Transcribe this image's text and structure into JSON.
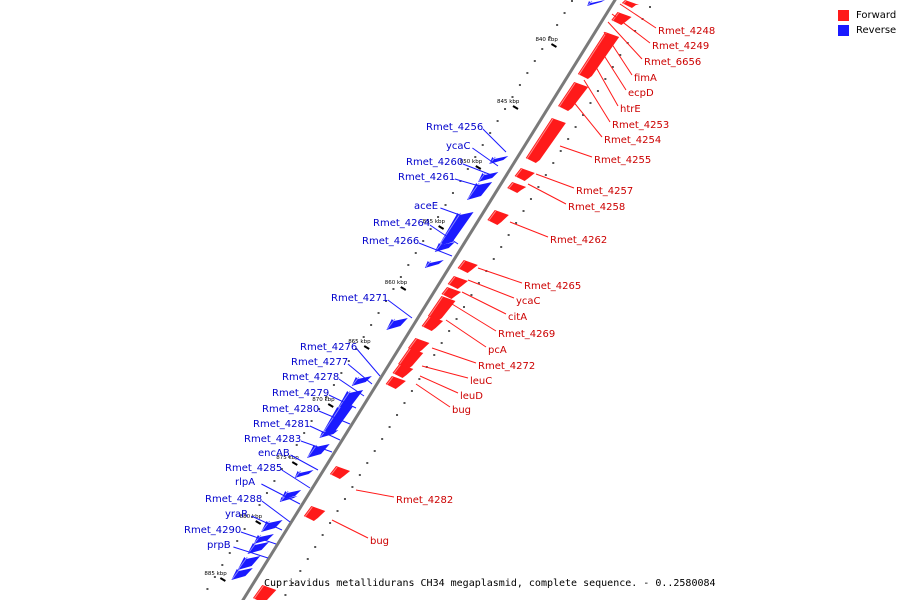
{
  "colors": {
    "forward": "#ff1a1a",
    "reverse": "#1a1aff",
    "backbone": "#7a7a7a"
  },
  "legend": [
    {
      "label": "Forward",
      "color": "#ff1a1a"
    },
    {
      "label": "Reverse",
      "color": "#1a1aff"
    }
  ],
  "caption": "Cupriavidus metallidurans CH34 megaplasmid, complete sequence. - 0..2580084",
  "ticks": [
    "840 kbp",
    "845 kbp",
    "850 kbp",
    "855 kbp",
    "860 kbp",
    "865 kbp",
    "870 kbp",
    "875 kbp",
    "880 kbp",
    "885 kbp"
  ],
  "forward_labels": [
    "Rmet_4248",
    "Rmet_4249",
    "Rmet_6656",
    "fimA",
    "ecpD",
    "htrE",
    "Rmet_4253",
    "Rmet_4254",
    "Rmet_4255",
    "Rmet_4257",
    "Rmet_4258",
    "Rmet_4262",
    "Rmet_4265",
    "ycaC",
    "citA",
    "Rmet_4269",
    "pcA",
    "Rmet_4272",
    "leuC",
    "leuD",
    "bug",
    "Rmet_4282",
    "bug"
  ],
  "reverse_labels": [
    "Rmet_4256",
    "ycaC",
    "Rmet_4260",
    "Rmet_4261",
    "aceE",
    "Rmet_4264",
    "Rmet_4266",
    "Rmet_4271",
    "Rmet_4276",
    "Rmet_4277",
    "Rmet_4278",
    "Rmet_4279",
    "Rmet_4280",
    "Rmet_4281",
    "Rmet_4283",
    "encAB",
    "Rmet_4285",
    "rlpA",
    "Rmet_4288",
    "yraR",
    "Rmet_4290",
    "prpB"
  ]
}
